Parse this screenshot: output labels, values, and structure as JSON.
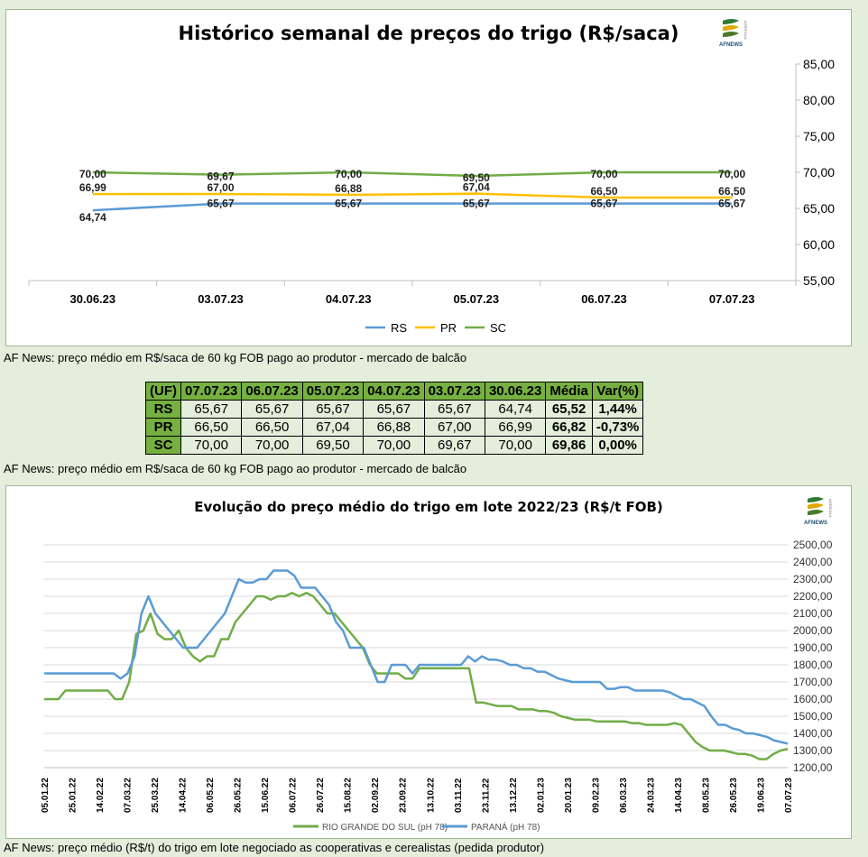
{
  "chart_data": [
    {
      "type": "line",
      "title": "Histórico semanal de preços do trigo (R$/saca)",
      "categories": [
        "30.06.23",
        "03.07.23",
        "04.07.23",
        "05.07.23",
        "06.07.23",
        "07.07.23"
      ],
      "series": [
        {
          "name": "RS",
          "color": "#5b9bd5",
          "values": [
            64.74,
            65.67,
            65.67,
            65.67,
            65.67,
            65.67
          ]
        },
        {
          "name": "PR",
          "color": "#ffc000",
          "values": [
            66.99,
            67.0,
            66.88,
            67.04,
            66.5,
            66.5
          ]
        },
        {
          "name": "SC",
          "color": "#70ad47",
          "values": [
            70.0,
            69.67,
            70.0,
            69.5,
            70.0,
            70.0
          ]
        }
      ],
      "y_ticks": [
        "55,00",
        "60,00",
        "65,00",
        "70,00",
        "75,00",
        "80,00",
        "85,00"
      ],
      "ylim": [
        55,
        85
      ],
      "y_axis_position": "right",
      "legend_position": "bottom",
      "grid": false
    },
    {
      "type": "line",
      "title": "Evolução do preço médio do trigo em lote 2022/23 (R$/t FOB)",
      "x_ticks": [
        "05.01.22",
        "25.01.22",
        "14.02.22",
        "07.03.22",
        "25.03.22",
        "14.04.22",
        "06.05.22",
        "26.05.22",
        "15.06.22",
        "06.07.22",
        "26.07.22",
        "15.08.22",
        "02.09.22",
        "23.09.22",
        "13.10.22",
        "03.11.22",
        "23.11.22",
        "13.12.22",
        "02.01.23",
        "20.01.23",
        "09.02.23",
        "06.03.23",
        "24.03.23",
        "14.04.23",
        "08.05.23",
        "26.05.23",
        "19.06.23",
        "07.07.23"
      ],
      "y_ticks": [
        "1200,00",
        "1300,00",
        "1400,00",
        "1500,00",
        "1600,00",
        "1700,00",
        "1800,00",
        "1900,00",
        "2000,00",
        "2100,00",
        "2200,00",
        "2300,00",
        "2400,00",
        "2500,00"
      ],
      "ylim": [
        1200,
        2500
      ],
      "y_axis_position": "right",
      "legend_position": "bottom",
      "grid": true,
      "series": [
        {
          "name": "RIO GRANDE DO SUL (pH 78)",
          "color": "#70ad47",
          "values": [
            1600,
            1600,
            1600,
            1650,
            1650,
            1650,
            1650,
            1650,
            1650,
            1650,
            1600,
            1600,
            1700,
            1980,
            2000,
            2100,
            1980,
            1950,
            1950,
            2000,
            1900,
            1850,
            1820,
            1850,
            1850,
            1950,
            1950,
            2050,
            2100,
            2150,
            2200,
            2200,
            2180,
            2200,
            2200,
            2220,
            2200,
            2220,
            2200,
            2150,
            2100,
            2100,
            2050,
            2000,
            1950,
            1900,
            1800,
            1750,
            1750,
            1750,
            1750,
            1720,
            1720,
            1780,
            1780,
            1780,
            1780,
            1780,
            1780,
            1780,
            1780,
            1580,
            1580,
            1570,
            1560,
            1560,
            1560,
            1540,
            1540,
            1540,
            1530,
            1530,
            1520,
            1500,
            1490,
            1480,
            1480,
            1480,
            1470,
            1470,
            1470,
            1470,
            1470,
            1460,
            1460,
            1450,
            1450,
            1450,
            1450,
            1460,
            1450,
            1400,
            1350,
            1320,
            1300,
            1300,
            1300,
            1290,
            1280,
            1280,
            1270,
            1250,
            1250,
            1280,
            1300,
            1310
          ]
        },
        {
          "name": "PARANÁ (pH 78)",
          "color": "#5b9bd5",
          "values": [
            1750,
            1750,
            1750,
            1750,
            1750,
            1750,
            1750,
            1750,
            1750,
            1750,
            1750,
            1720,
            1750,
            1850,
            2100,
            2200,
            2100,
            2050,
            2000,
            1950,
            1900,
            1900,
            1900,
            1950,
            2000,
            2050,
            2100,
            2200,
            2300,
            2280,
            2280,
            2300,
            2300,
            2350,
            2350,
            2350,
            2320,
            2250,
            2250,
            2250,
            2200,
            2150,
            2050,
            2000,
            1900,
            1900,
            1900,
            1800,
            1700,
            1700,
            1800,
            1800,
            1800,
            1750,
            1800,
            1800,
            1800,
            1800,
            1800,
            1800,
            1800,
            1850,
            1820,
            1850,
            1830,
            1830,
            1820,
            1800,
            1800,
            1780,
            1780,
            1760,
            1760,
            1740,
            1720,
            1710,
            1700,
            1700,
            1700,
            1700,
            1700,
            1660,
            1660,
            1670,
            1670,
            1650,
            1650,
            1650,
            1650,
            1650,
            1640,
            1620,
            1600,
            1600,
            1580,
            1560,
            1500,
            1450,
            1450,
            1430,
            1420,
            1400,
            1400,
            1390,
            1380,
            1360,
            1350,
            1340
          ]
        }
      ]
    }
  ],
  "captions": {
    "cap1": "AF News: preço médio em R$/saca de 60 kg FOB pago ao produtor - mercado de balcão",
    "cap2": "AF News: preço médio em R$/saca de 60 kg FOB pago ao produtor - mercado de balcão",
    "cap3": "AF News: preço médio (R$/t) do trigo em lote negociado as cooperativas e cerealistas (pedida produtor)"
  },
  "logo_text": "AFNEWS",
  "logo_side_text": "AGRÍCOLA",
  "table": {
    "headers": [
      "(UF)",
      "07.07.23",
      "06.07.23",
      "05.07.23",
      "04.07.23",
      "03.07.23",
      "30.06.23",
      "Média",
      "Var(%)"
    ],
    "rows": [
      [
        "RS",
        "65,67",
        "65,67",
        "65,67",
        "65,67",
        "65,67",
        "64,74",
        "65,52",
        "1,44%"
      ],
      [
        "PR",
        "66,50",
        "66,50",
        "67,04",
        "66,88",
        "67,00",
        "66,99",
        "66,82",
        "-0,73%"
      ],
      [
        "SC",
        "70,00",
        "70,00",
        "69,50",
        "70,00",
        "69,67",
        "70,00",
        "69,86",
        "0,00%"
      ]
    ]
  },
  "colors": {
    "header_green": "#76b041",
    "background": "#e3efda"
  }
}
